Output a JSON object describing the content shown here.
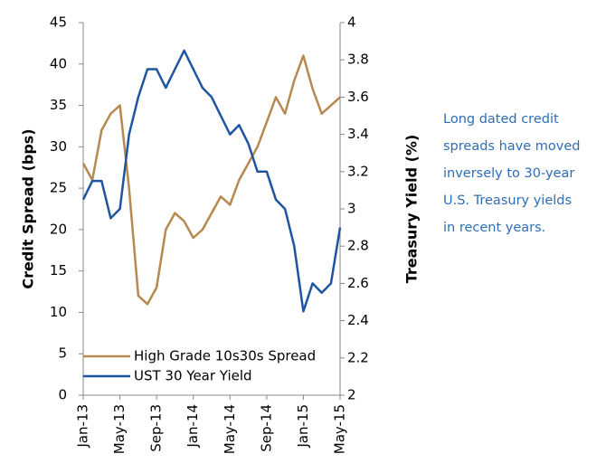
{
  "chart_data": {
    "type": "line",
    "y_label": "Credit Spread (bps)",
    "y2_label": "Treasury Yield (%)",
    "annotation": [
      "Long dated credit",
      "spreads have moved",
      "inversely to 30-year",
      "U.S. Treasury yields",
      "in recent years."
    ],
    "categories": [
      "Jan-13",
      null,
      null,
      null,
      "May-13",
      null,
      null,
      null,
      "Sep-13",
      null,
      null,
      null,
      "Jan-14",
      null,
      null,
      null,
      "May-14",
      null,
      null,
      null,
      "Sep-14",
      null,
      null,
      null,
      "Jan-15",
      null,
      null,
      null,
      "May-15"
    ],
    "series": [
      {
        "name": "High Grade 10s30s Spread",
        "color": "#b5894f",
        "axis": "y",
        "values": [
          28,
          26,
          32,
          34,
          35,
          25,
          12,
          11,
          13,
          20,
          22,
          21,
          19,
          20,
          22,
          24,
          23,
          26,
          28,
          30,
          33,
          36,
          34,
          38,
          41,
          37,
          34,
          35,
          36
        ]
      },
      {
        "name": "UST 30 Year Yield",
        "color": "#1f55a0",
        "axis": "y2",
        "values": [
          3.05,
          3.15,
          3.15,
          2.95,
          3.0,
          3.4,
          3.6,
          3.75,
          3.75,
          3.65,
          3.75,
          3.85,
          3.75,
          3.65,
          3.6,
          3.5,
          3.4,
          3.45,
          3.35,
          3.2,
          3.2,
          3.05,
          3.0,
          2.8,
          2.45,
          2.6,
          2.55,
          2.6,
          2.9
        ]
      }
    ],
    "ylim": [
      0,
      45
    ],
    "yticks": [
      0,
      5,
      10,
      15,
      20,
      25,
      30,
      35,
      40,
      45
    ],
    "y2lim": [
      2,
      4
    ],
    "y2ticks": [
      2,
      {
        "value": 2.2,
        "label": "2.2"
      },
      {
        "value": 2.4,
        "label": "2.4"
      },
      {
        "value": 2.6,
        "label": "2.6"
      },
      {
        "value": 2.8,
        "label": "2.8"
      },
      3,
      {
        "value": 3.2,
        "label": "3.2"
      },
      {
        "value": 3.4,
        "label": "3.4"
      },
      {
        "value": 3.6,
        "label": "3.6"
      },
      {
        "value": 3.8,
        "label": "3.8"
      },
      4
    ],
    "grid": false,
    "legend": "lower left"
  }
}
